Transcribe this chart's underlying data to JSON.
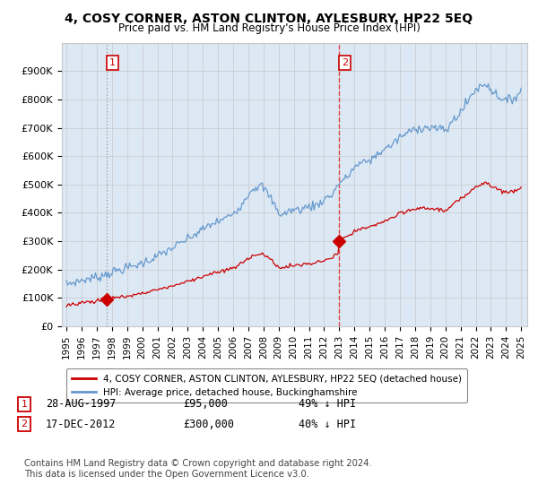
{
  "title": "4, COSY CORNER, ASTON CLINTON, AYLESBURY, HP22 5EQ",
  "subtitle": "Price paid vs. HM Land Registry's House Price Index (HPI)",
  "ylim": [
    0,
    1000000
  ],
  "xlim_start": 1994.7,
  "xlim_end": 2025.4,
  "yticks": [
    0,
    100000,
    200000,
    300000,
    400000,
    500000,
    600000,
    700000,
    800000,
    900000
  ],
  "ytick_labels": [
    "£0",
    "£100K",
    "£200K",
    "£300K",
    "£400K",
    "£500K",
    "£600K",
    "£700K",
    "£800K",
    "£900K"
  ],
  "xticks": [
    1995,
    1996,
    1997,
    1998,
    1999,
    2000,
    2001,
    2002,
    2003,
    2004,
    2005,
    2006,
    2007,
    2008,
    2009,
    2010,
    2011,
    2012,
    2013,
    2014,
    2015,
    2016,
    2017,
    2018,
    2019,
    2020,
    2021,
    2022,
    2023,
    2024,
    2025
  ],
  "sale1_x": 1997.65,
  "sale1_y": 95000,
  "sale2_x": 2012.97,
  "sale2_y": 300000,
  "legend_line1": "4, COSY CORNER, ASTON CLINTON, AYLESBURY, HP22 5EQ (detached house)",
  "legend_line2": "HPI: Average price, detached house, Buckinghamshire",
  "annot1_date": "28-AUG-1997",
  "annot1_price": "£95,000",
  "annot1_hpi": "49% ↓ HPI",
  "annot2_date": "17-DEC-2012",
  "annot2_price": "£300,000",
  "annot2_hpi": "40% ↓ HPI",
  "footnote": "Contains HM Land Registry data © Crown copyright and database right 2024.\nThis data is licensed under the Open Government Licence v3.0.",
  "red_line_color": "#cc0000",
  "blue_line_color": "#6699cc",
  "background_color": "#ffffff",
  "plot_bg_color": "#ffffff",
  "shade_color": "#dde8f5",
  "grid_color": "#c8c8c8",
  "vline1_color": "#999999",
  "vline2_color": "#dd3333"
}
